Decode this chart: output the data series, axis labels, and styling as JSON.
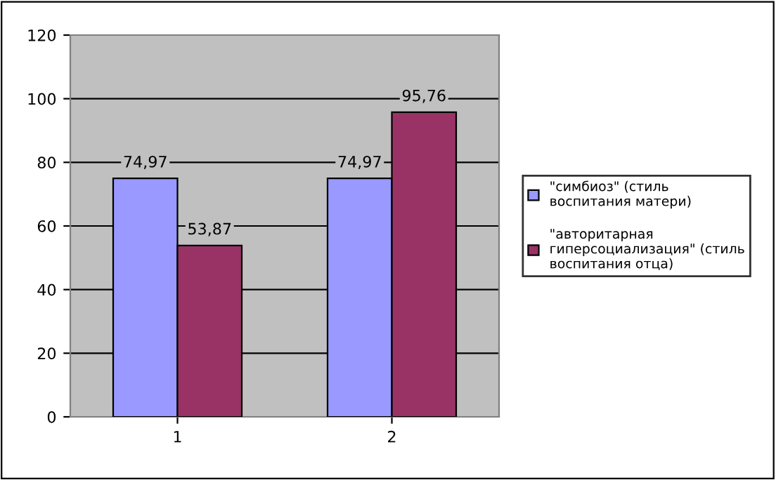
{
  "chart_data": {
    "type": "bar",
    "categories": [
      "1",
      "2"
    ],
    "series": [
      {
        "name": "\"симбиоз\" (стиль\nвоспитания матери)",
        "color": "#9999ff",
        "values": [
          74.97,
          74.97
        ],
        "value_labels": [
          "74,97",
          "74,97"
        ]
      },
      {
        "name": "\"авторитарная\nгиперсоциализация\" (стиль\nвоспитания отца)",
        "color": "#993366",
        "values": [
          53.87,
          95.76
        ],
        "value_labels": [
          "53,87",
          "95,76"
        ]
      }
    ],
    "ylim": [
      0,
      120
    ],
    "yticks": [
      0,
      20,
      40,
      60,
      80,
      100,
      120
    ],
    "grid": "y",
    "legend": "right"
  }
}
